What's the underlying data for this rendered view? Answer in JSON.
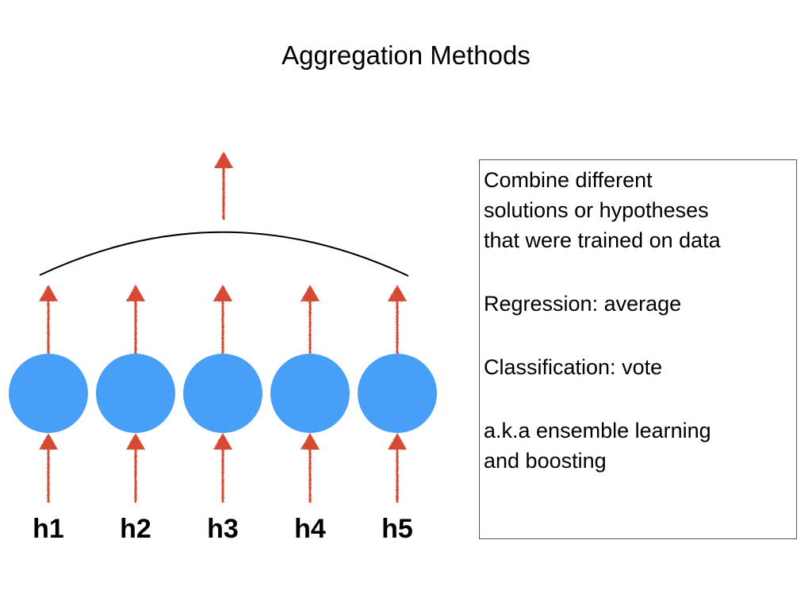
{
  "slide": {
    "title": "Aggregation Methods"
  },
  "diagram": {
    "hypotheses": [
      "h1",
      "h2",
      "h3",
      "h4",
      "h5"
    ],
    "colors": {
      "node": "#479ff7",
      "arrow": "#d64a33",
      "curve": "#000000"
    },
    "icons": {
      "arrow": "up-arrow-icon",
      "node": "circle-node"
    }
  },
  "info_box": {
    "paragraphs": [
      [
        "Combine different",
        "solutions or hypotheses",
        "that were trained on data"
      ],
      [
        "Regression: average"
      ],
      [
        "Classification: vote"
      ],
      [
        "a.k.a ensemble learning",
        "and boosting"
      ]
    ]
  }
}
